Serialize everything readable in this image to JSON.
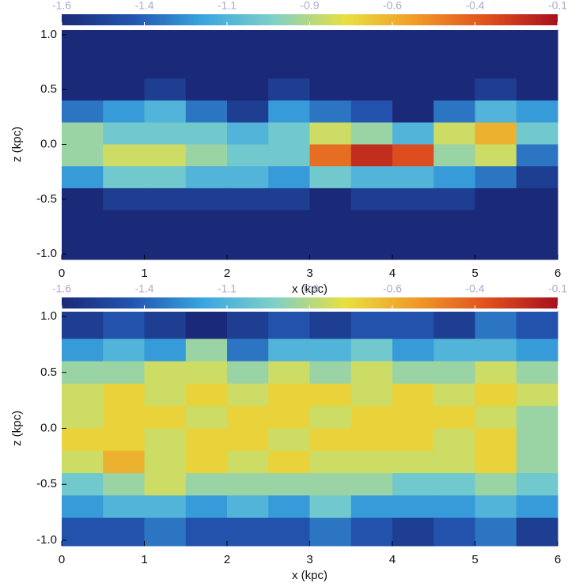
{
  "chart_data": [
    {
      "type": "heatmap",
      "xlabel": "x (kpc)",
      "ylabel": "z (kpc)",
      "xlim": [
        0,
        6
      ],
      "ylim": [
        -1.05,
        1.05
      ],
      "xticks": [
        0,
        1,
        2,
        3,
        4,
        5,
        6
      ],
      "yticks": [
        {
          "value": -1,
          "label": "-1.0"
        },
        -0.5,
        {
          "value": 0,
          "label": "0.0"
        },
        0.5,
        {
          "value": 1,
          "label": "1.0"
        }
      ],
      "clim": [
        -1.6,
        -0.1
      ],
      "cticks": [
        -1.6,
        {
          "value": -1.35,
          "label": "-1.4"
        },
        -1.1,
        {
          "value": -0.85,
          "label": "-0.9"
        },
        -0.6,
        {
          "value": -0.35,
          "label": "-0.4"
        },
        -0.1
      ],
      "colormap": [
        "#1b2a78",
        "#2255b0",
        "#3aa6e0",
        "#7fd0c8",
        "#e8e040",
        "#f09a28",
        "#e0501e",
        "#a8101e"
      ],
      "x": [
        0.25,
        0.75,
        1.25,
        1.75,
        2.25,
        2.75,
        3.25,
        3.75,
        4.25,
        4.75,
        5.25,
        5.75
      ],
      "y": [
        0.9,
        0.7,
        0.5,
        0.3,
        0.1,
        -0.1,
        -0.3,
        -0.5,
        -0.7,
        -0.9
      ],
      "values": [
        [
          -1.6,
          -1.6,
          -1.6,
          -1.6,
          -1.6,
          -1.6,
          -1.6,
          -1.6,
          -1.6,
          -1.6,
          -1.6,
          -1.6
        ],
        [
          -1.6,
          -1.6,
          -1.6,
          -1.6,
          -1.6,
          -1.6,
          -1.6,
          -1.6,
          -1.6,
          -1.6,
          -1.6,
          -1.6
        ],
        [
          -1.6,
          -1.6,
          -1.5,
          -1.6,
          -1.6,
          -1.5,
          -1.6,
          -1.6,
          -1.6,
          -1.6,
          -1.5,
          -1.6
        ],
        [
          -1.3,
          -1.2,
          -1.1,
          -1.3,
          -1.5,
          -1.2,
          -1.3,
          -1.4,
          -1.6,
          -1.3,
          -1.1,
          -1.2
        ],
        [
          -0.9,
          -1.0,
          -1.0,
          -1.0,
          -1.1,
          -1.0,
          -0.8,
          -0.9,
          -1.1,
          -0.8,
          -0.6,
          -1.0
        ],
        [
          -0.9,
          -0.8,
          -0.8,
          -0.9,
          -1.0,
          -1.0,
          -0.4,
          -0.2,
          -0.3,
          -0.9,
          -0.8,
          -1.3
        ],
        [
          -1.2,
          -1.0,
          -1.0,
          -1.1,
          -1.1,
          -1.2,
          -1.0,
          -1.1,
          -1.1,
          -1.2,
          -1.3,
          -1.5
        ],
        [
          -1.6,
          -1.5,
          -1.5,
          -1.5,
          -1.5,
          -1.5,
          -1.6,
          -1.5,
          -1.5,
          -1.5,
          -1.6,
          -1.6
        ],
        [
          -1.6,
          -1.6,
          -1.6,
          -1.6,
          -1.6,
          -1.6,
          -1.6,
          -1.6,
          -1.6,
          -1.6,
          -1.6,
          -1.6
        ],
        [
          -1.6,
          -1.6,
          -1.6,
          -1.6,
          -1.6,
          -1.6,
          -1.6,
          -1.6,
          -1.6,
          -1.6,
          -1.6,
          -1.6
        ]
      ]
    },
    {
      "type": "heatmap",
      "xlabel": "x (kpc)",
      "ylabel": "z (kpc)",
      "xlim": [
        0,
        6
      ],
      "ylim": [
        -1.05,
        1.05
      ],
      "xticks": [
        0,
        1,
        2,
        3,
        4,
        5,
        6
      ],
      "yticks": [
        {
          "value": -1,
          "label": "-1.0"
        },
        -0.5,
        {
          "value": 0,
          "label": "0.0"
        },
        0.5,
        {
          "value": 1,
          "label": "1.0"
        }
      ],
      "clim": [
        -1.6,
        -0.1
      ],
      "cticks": [
        -1.6,
        {
          "value": -1.35,
          "label": "-1.4"
        },
        -1.1,
        {
          "value": -0.85,
          "label": "-0.9"
        },
        -0.6,
        {
          "value": -0.35,
          "label": "-0.4"
        },
        -0.1
      ],
      "colormap": [
        "#1b2a78",
        "#2255b0",
        "#3aa6e0",
        "#7fd0c8",
        "#e8e040",
        "#f09a28",
        "#e0501e",
        "#a8101e"
      ],
      "x": [
        0.25,
        0.75,
        1.25,
        1.75,
        2.25,
        2.75,
        3.25,
        3.75,
        4.25,
        4.75,
        5.25,
        5.75
      ],
      "y": [
        0.9,
        0.7,
        0.5,
        0.3,
        0.1,
        -0.1,
        -0.3,
        -0.5,
        -0.7,
        -0.9
      ],
      "values": [
        [
          -1.5,
          -1.4,
          -1.5,
          -1.6,
          -1.5,
          -1.4,
          -1.5,
          -1.4,
          -1.4,
          -1.5,
          -1.3,
          -1.4
        ],
        [
          -1.2,
          -1.1,
          -1.2,
          -0.9,
          -1.3,
          -1.1,
          -1.1,
          -1.0,
          -1.2,
          -1.1,
          -1.1,
          -1.2
        ],
        [
          -0.9,
          -0.9,
          -0.8,
          -0.8,
          -0.9,
          -0.8,
          -0.9,
          -0.8,
          -0.9,
          -0.9,
          -0.8,
          -0.9
        ],
        [
          -0.8,
          -0.7,
          -0.8,
          -0.7,
          -0.8,
          -0.7,
          -0.7,
          -0.8,
          -0.7,
          -0.8,
          -0.7,
          -0.8
        ],
        [
          -0.8,
          -0.7,
          -0.7,
          -0.8,
          -0.7,
          -0.7,
          -0.8,
          -0.7,
          -0.7,
          -0.7,
          -0.8,
          -0.9
        ],
        [
          -0.7,
          -0.7,
          -0.8,
          -0.7,
          -0.7,
          -0.8,
          -0.7,
          -0.7,
          -0.7,
          -0.8,
          -0.7,
          -0.9
        ],
        [
          -0.8,
          -0.6,
          -0.8,
          -0.7,
          -0.8,
          -0.7,
          -0.8,
          -0.8,
          -0.8,
          -0.8,
          -0.7,
          -0.9
        ],
        [
          -1.0,
          -0.9,
          -0.8,
          -0.9,
          -0.9,
          -0.9,
          -0.9,
          -0.9,
          -1.0,
          -1.0,
          -0.9,
          -1.0
        ],
        [
          -1.2,
          -1.1,
          -1.1,
          -1.2,
          -1.1,
          -1.2,
          -1.0,
          -1.2,
          -1.2,
          -1.2,
          -1.1,
          -1.2
        ],
        [
          -1.4,
          -1.4,
          -1.3,
          -1.4,
          -1.4,
          -1.4,
          -1.3,
          -1.4,
          -1.5,
          -1.4,
          -1.3,
          -1.5
        ]
      ]
    }
  ]
}
